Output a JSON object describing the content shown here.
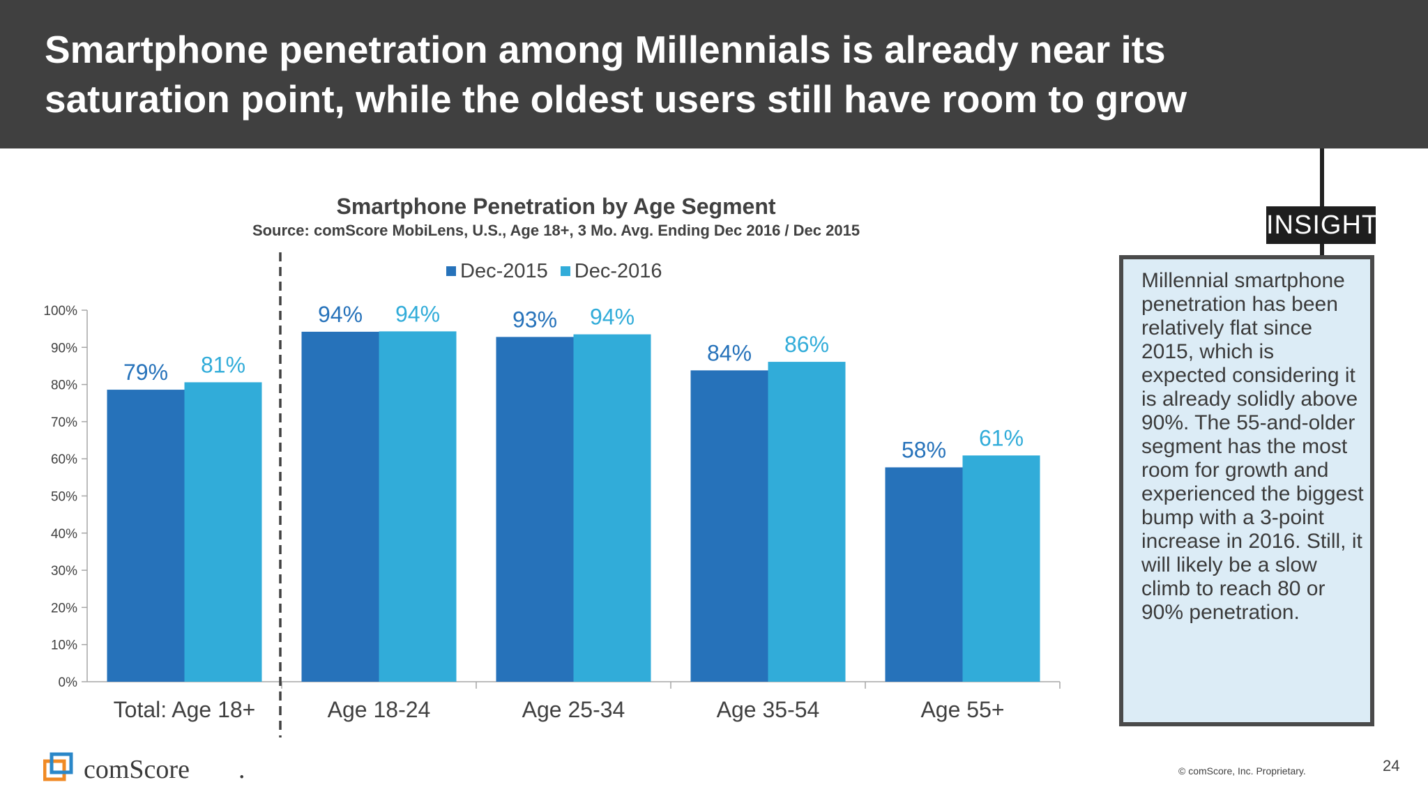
{
  "slide": {
    "headline": "Smartphone penetration among Millennials is already near its saturation point, while the oldest users still have room to grow",
    "insight_label": "INSIGHT",
    "insight_text": "Millennial smartphone penetration has been relatively flat since 2015, which is expected considering it is already solidly above 90%. The 55-and-older segment has the most room for growth and experienced the biggest bump with a 3-point increase in 2016. Still, it will likely be a slow climb to reach 80 or 90% penetration.",
    "logo_text": "comScore",
    "logo_period": ".",
    "copyright": "© comScore, Inc. Proprietary.",
    "page_number": "24"
  },
  "chart_data": {
    "type": "bar",
    "title": "Smartphone Penetration by Age Segment",
    "subtitle": "Source: comScore MobiLens, U.S., Age 18+, 3 Mo. Avg. Ending Dec 2016 / Dec 2015",
    "categories": [
      "Total: Age 18+",
      "Age 18-24",
      "Age 25-34",
      "Age 35-54",
      "Age 55+"
    ],
    "series": [
      {
        "name": "Dec-2015",
        "color": "#2672ba",
        "values": [
          78.6,
          94.2,
          92.8,
          83.8,
          57.7
        ],
        "labels": [
          "79%",
          "94%",
          "93%",
          "84%",
          "58%"
        ]
      },
      {
        "name": "Dec-2016",
        "color": "#31acd9",
        "values": [
          80.6,
          94.3,
          93.5,
          86.1,
          60.9
        ],
        "labels": [
          "81%",
          "94%",
          "94%",
          "86%",
          "61%"
        ]
      }
    ],
    "ylim": [
      0,
      100
    ],
    "yticks": [
      "0%",
      "10%",
      "20%",
      "30%",
      "40%",
      "50%",
      "60%",
      "70%",
      "80%",
      "90%",
      "100%"
    ],
    "legend_position": "top",
    "grid": false,
    "divider_after_category": "Total: Age 18+"
  }
}
